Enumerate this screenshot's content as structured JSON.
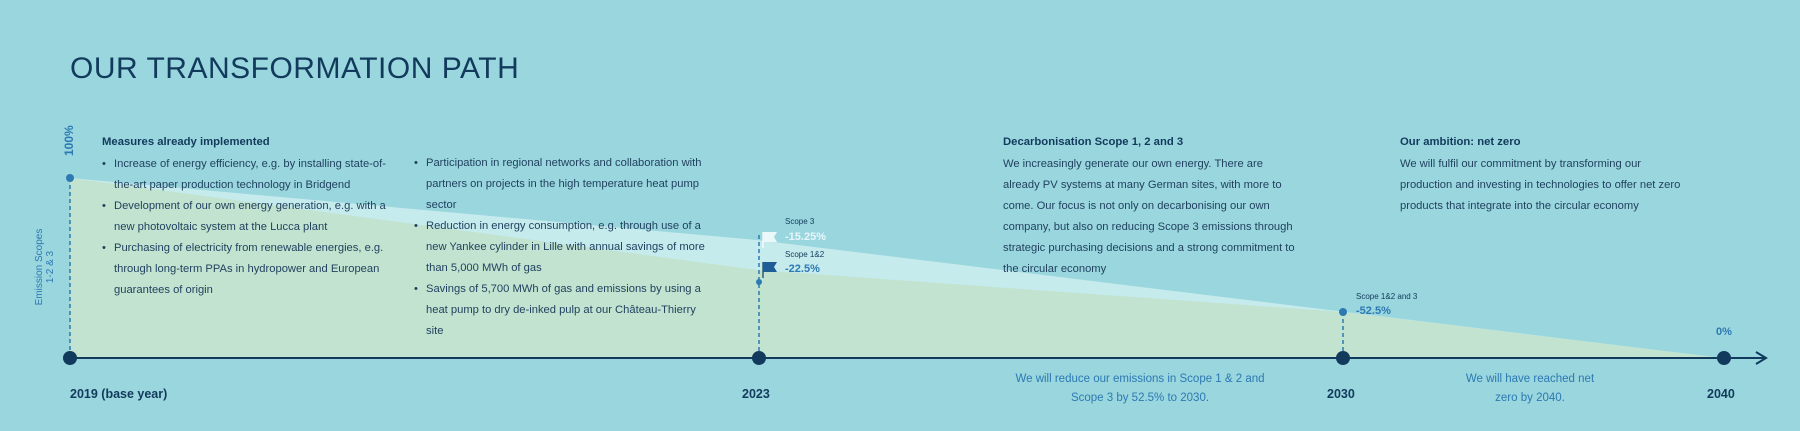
{
  "title": "OUR TRANSFORMATION PATH",
  "y_axis": {
    "top_label": "100%",
    "side_label_1": "Emission Scopes",
    "side_label_2": "1-2 & 3"
  },
  "measures": {
    "heading": "Measures already implemented",
    "col1": [
      "Increase of energy efficiency, e.g. by installing state-of-the-art paper production technology in Bridgend",
      "Development of our own energy generation, e.g. with a new photovoltaic system at the Lucca plant",
      "Purchasing of electricity from renewable energies, e.g. through long-term PPAs in hydropower and European guarantees of origin"
    ],
    "col2": [
      "Participation in regional networks and collaboration with partners on projects in the high temperature heat pump sector",
      "Reduction in energy consumption, e.g. through use of a new Yankee cylinder in Lille with annual savings of more than 5,000 MWh of gas",
      "Savings of 5,700 MWh of gas and emissions by using a heat pump to dry de-inked pulp at our Château-Thierry site"
    ]
  },
  "decarb": {
    "heading": "Decarbonisation Scope 1, 2 and 3",
    "text": "We increasingly generate our own energy. There are already PV systems at many German sites, with more to come. Our focus is not only on decarbonising our own company, but also on reducing Scope 3 emissions through strategic purchasing decisions and a strong commitment to the circular economy"
  },
  "ambition": {
    "heading": "Our ambition: net zero",
    "text": "We will fulfil our commitment by transforming our production and investing in technologies to offer net zero products that integrate into the circular economy"
  },
  "milestones": [
    {
      "label": "2019 (base year)"
    },
    {
      "label": "2023"
    },
    {
      "label": "2030"
    },
    {
      "label": "2040"
    }
  ],
  "flags_2023": [
    {
      "label": "Scope 3",
      "value": "-15.25%"
    },
    {
      "label": "Scope 1&2",
      "value": "-22.5%"
    }
  ],
  "point_2030": {
    "label": "Scope 1&2 and 3",
    "value": "-52.5%"
  },
  "point_2040": {
    "value": "0%"
  },
  "notes": {
    "n2030": "We will reduce our emissions in Scope 1 & 2 and Scope 3 by 52.5% to 2030.",
    "n2040": "We will have reached net zero by 2040."
  },
  "colors": {
    "background": "#9ad6de",
    "navy": "#123a5c",
    "accent": "#2d79b2",
    "area_light": "#c6e9ea",
    "area_green": "#bfe2cd"
  }
}
